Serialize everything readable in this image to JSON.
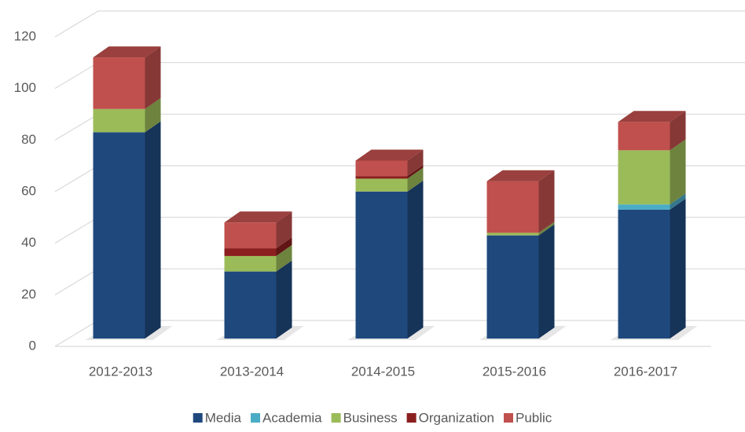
{
  "chart_data": {
    "type": "bar3d_stacked",
    "categories": [
      "2012-2013",
      "2013-2014",
      "2014-2015",
      "2015-2016",
      "2016-2017"
    ],
    "series": [
      {
        "name": "Media",
        "color": "#1f497d",
        "values": [
          80,
          26,
          57,
          40,
          50
        ]
      },
      {
        "name": "Academia",
        "color": "#4bacc6",
        "values": [
          0,
          0,
          0,
          0,
          2
        ]
      },
      {
        "name": "Business",
        "color": "#9bbb59",
        "values": [
          9,
          6,
          5,
          1,
          21
        ]
      },
      {
        "name": "Organization",
        "color": "#8b1e1e",
        "values": [
          0,
          3,
          1,
          0,
          0
        ]
      },
      {
        "name": "Public",
        "color": "#c0504d",
        "values": [
          20,
          10,
          6,
          20,
          11
        ]
      }
    ],
    "ylim": [
      0,
      120
    ],
    "yticks": [
      0,
      20,
      40,
      60,
      80,
      100,
      120
    ],
    "grid": true,
    "legend": "bottom"
  }
}
